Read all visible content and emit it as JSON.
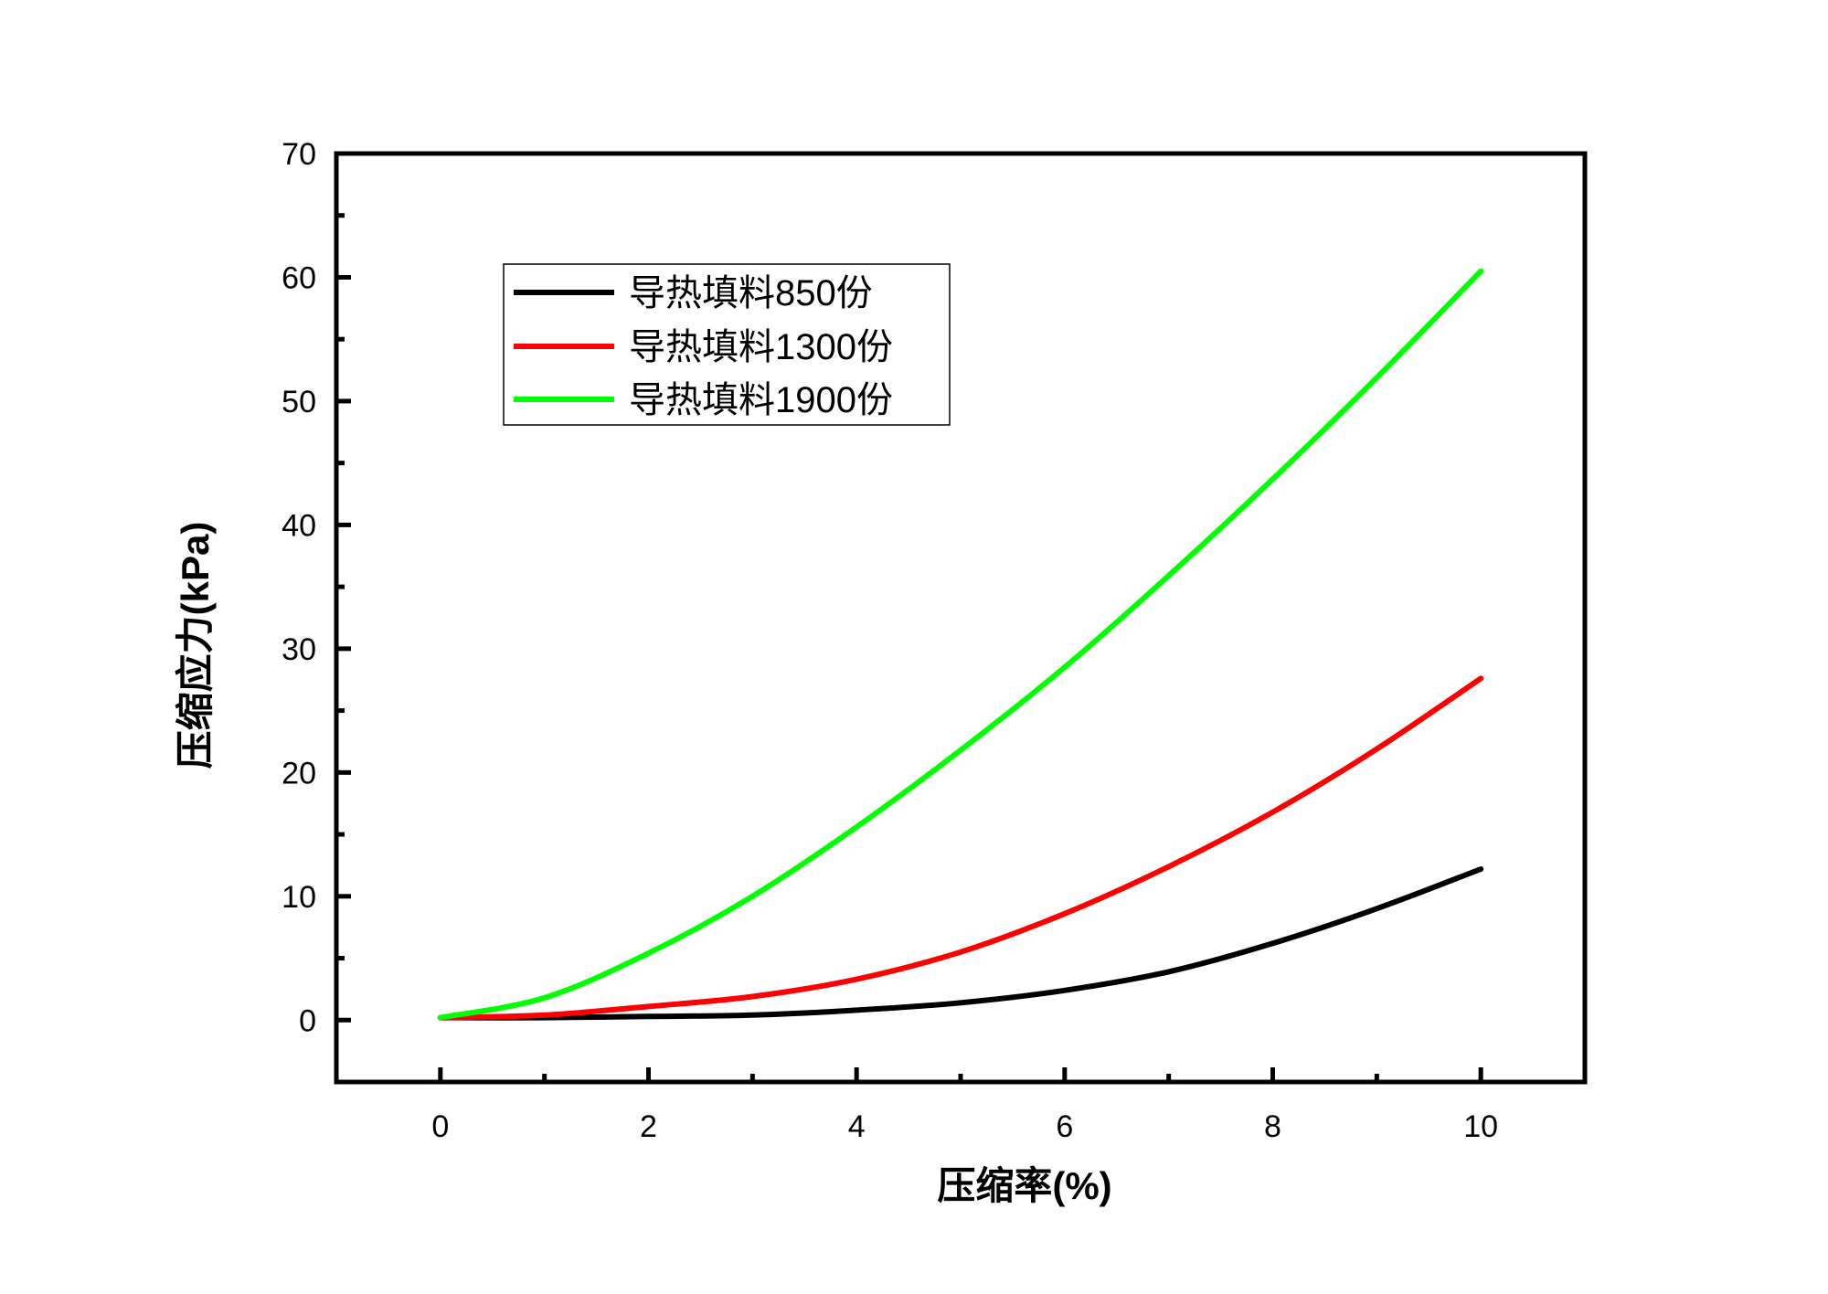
{
  "chart_data": {
    "type": "line",
    "title": "",
    "xlabel": "压缩率(%)",
    "ylabel": "压缩应力(kPa)",
    "xlim": [
      -1,
      11
    ],
    "ylim": [
      -5,
      70
    ],
    "x_ticks": [
      0,
      2,
      4,
      6,
      8,
      10
    ],
    "y_ticks": [
      0,
      10,
      20,
      30,
      40,
      50,
      60,
      70
    ],
    "grid": false,
    "legend_position": "top-left",
    "series": [
      {
        "name": "导热填料850份",
        "color": "#000000",
        "x": [
          0,
          1,
          2,
          3,
          4,
          5,
          6,
          7,
          8,
          9,
          10
        ],
        "y": [
          0.2,
          0.2,
          0.3,
          0.4,
          0.8,
          1.4,
          2.4,
          3.9,
          6.2,
          9.0,
          12.2
        ]
      },
      {
        "name": "导热填料1300份",
        "color": "#ff0000",
        "x": [
          0,
          1,
          2,
          3,
          4,
          5,
          6,
          7,
          8,
          9,
          10
        ],
        "y": [
          0.2,
          0.4,
          1.1,
          1.9,
          3.3,
          5.5,
          8.6,
          12.4,
          16.8,
          21.9,
          27.6
        ]
      },
      {
        "name": "导热填料1900份",
        "color": "#00ff00",
        "x": [
          0,
          1,
          2,
          3,
          4,
          5,
          6,
          7,
          8,
          9,
          10
        ],
        "y": [
          0.2,
          1.8,
          5.4,
          10.0,
          15.6,
          21.8,
          28.5,
          35.9,
          43.7,
          51.9,
          60.5
        ]
      }
    ]
  }
}
